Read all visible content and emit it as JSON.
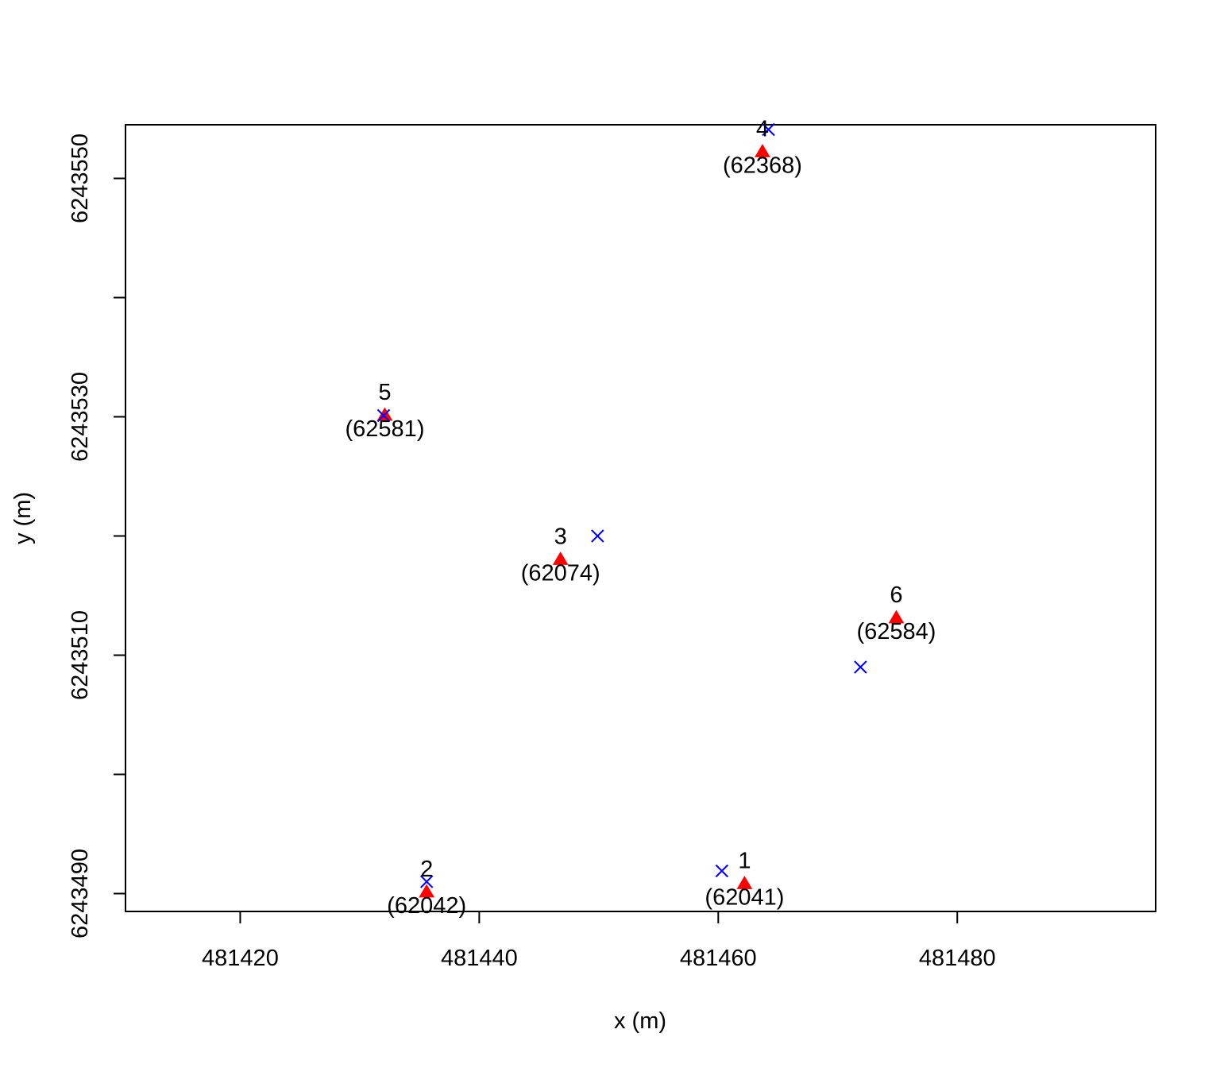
{
  "chart_data": {
    "type": "scatter",
    "title": "",
    "xlabel": "x (m)",
    "ylabel": "y (m)",
    "xlim": [
      481410.4,
      481496.6
    ],
    "ylim": [
      6243488.5,
      6243554.5
    ],
    "x_ticks": [
      481420,
      481440,
      481460,
      481480
    ],
    "x_tick_labels": [
      "481420",
      "481440",
      "481460",
      "481480"
    ],
    "y_ticks": [
      6243490,
      6243500,
      6243510,
      6243520,
      6243530,
      6243540,
      6243550
    ],
    "y_tick_labels": [
      "6243490",
      "",
      "6243510",
      "",
      "6243530",
      "",
      "6243550"
    ],
    "grid": false,
    "legend": "none",
    "series": [
      {
        "marker": "filled-triangle",
        "color": "#ff0000",
        "points": [
          {
            "x": 481462.2,
            "y": 6243490.8,
            "label": "1",
            "sublabel": "(62041)"
          },
          {
            "x": 481435.6,
            "y": 6243490.1,
            "label": "2",
            "sublabel": "(62042)"
          },
          {
            "x": 481446.8,
            "y": 6243518.0,
            "label": "3",
            "sublabel": "(62074)"
          },
          {
            "x": 481463.7,
            "y": 6243552.2,
            "label": "4",
            "sublabel": "(62368)"
          },
          {
            "x": 481432.1,
            "y": 6243530.1,
            "label": "5",
            "sublabel": "(62581)"
          },
          {
            "x": 481474.9,
            "y": 6243513.1,
            "label": "6",
            "sublabel": "(62584)"
          }
        ]
      },
      {
        "marker": "x-cross",
        "color": "#0000ff",
        "points": [
          {
            "x": 481460.3,
            "y": 6243491.9
          },
          {
            "x": 481435.6,
            "y": 6243491.0
          },
          {
            "x": 481449.9,
            "y": 6243520.0
          },
          {
            "x": 481464.2,
            "y": 6243554.1
          },
          {
            "x": 481432.0,
            "y": 6243530.1
          },
          {
            "x": 481471.9,
            "y": 6243509.0
          }
        ]
      }
    ]
  }
}
